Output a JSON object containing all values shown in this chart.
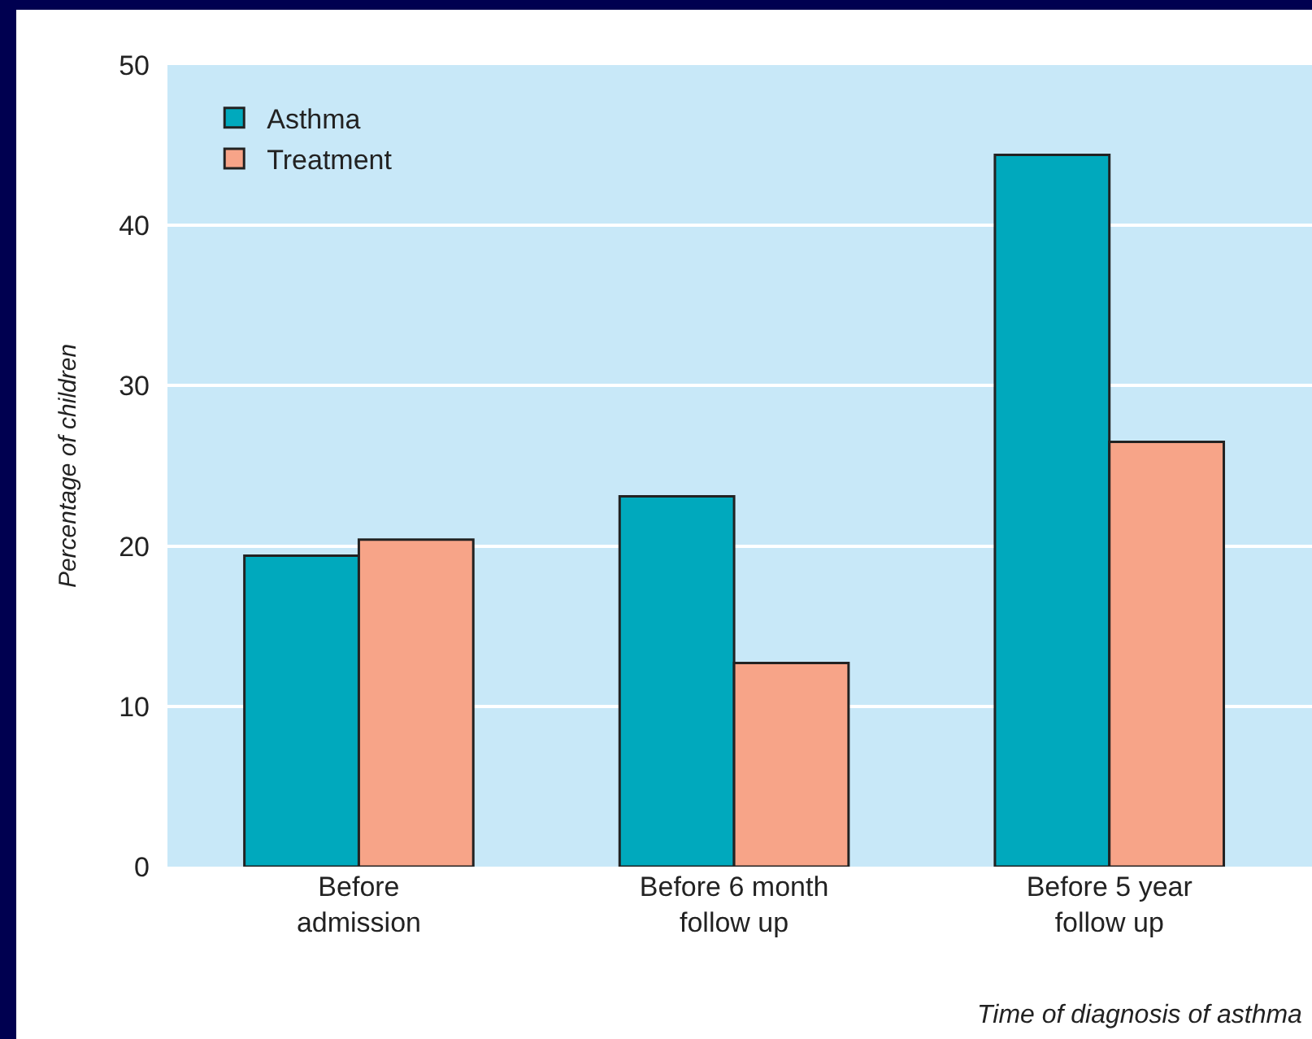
{
  "chart_data": {
    "type": "bar",
    "xlabel": "Time of diagnosis of asthma",
    "ylabel": "Percentage of children",
    "categories": [
      "Before\nadmission",
      "Before 6 month\nfollow up",
      "Before 5 year\nfollow up"
    ],
    "series": [
      {
        "name": "Asthma",
        "color": "#00a9bd",
        "values": [
          19.4,
          23.1,
          44.4
        ]
      },
      {
        "name": "Treatment",
        "color": "#f7a488",
        "values": [
          20.4,
          12.7,
          26.5
        ]
      }
    ],
    "ylim": [
      0,
      50
    ],
    "yticks": [
      0,
      10,
      20,
      30,
      40,
      50
    ],
    "grid": "y",
    "legend": "top left"
  }
}
